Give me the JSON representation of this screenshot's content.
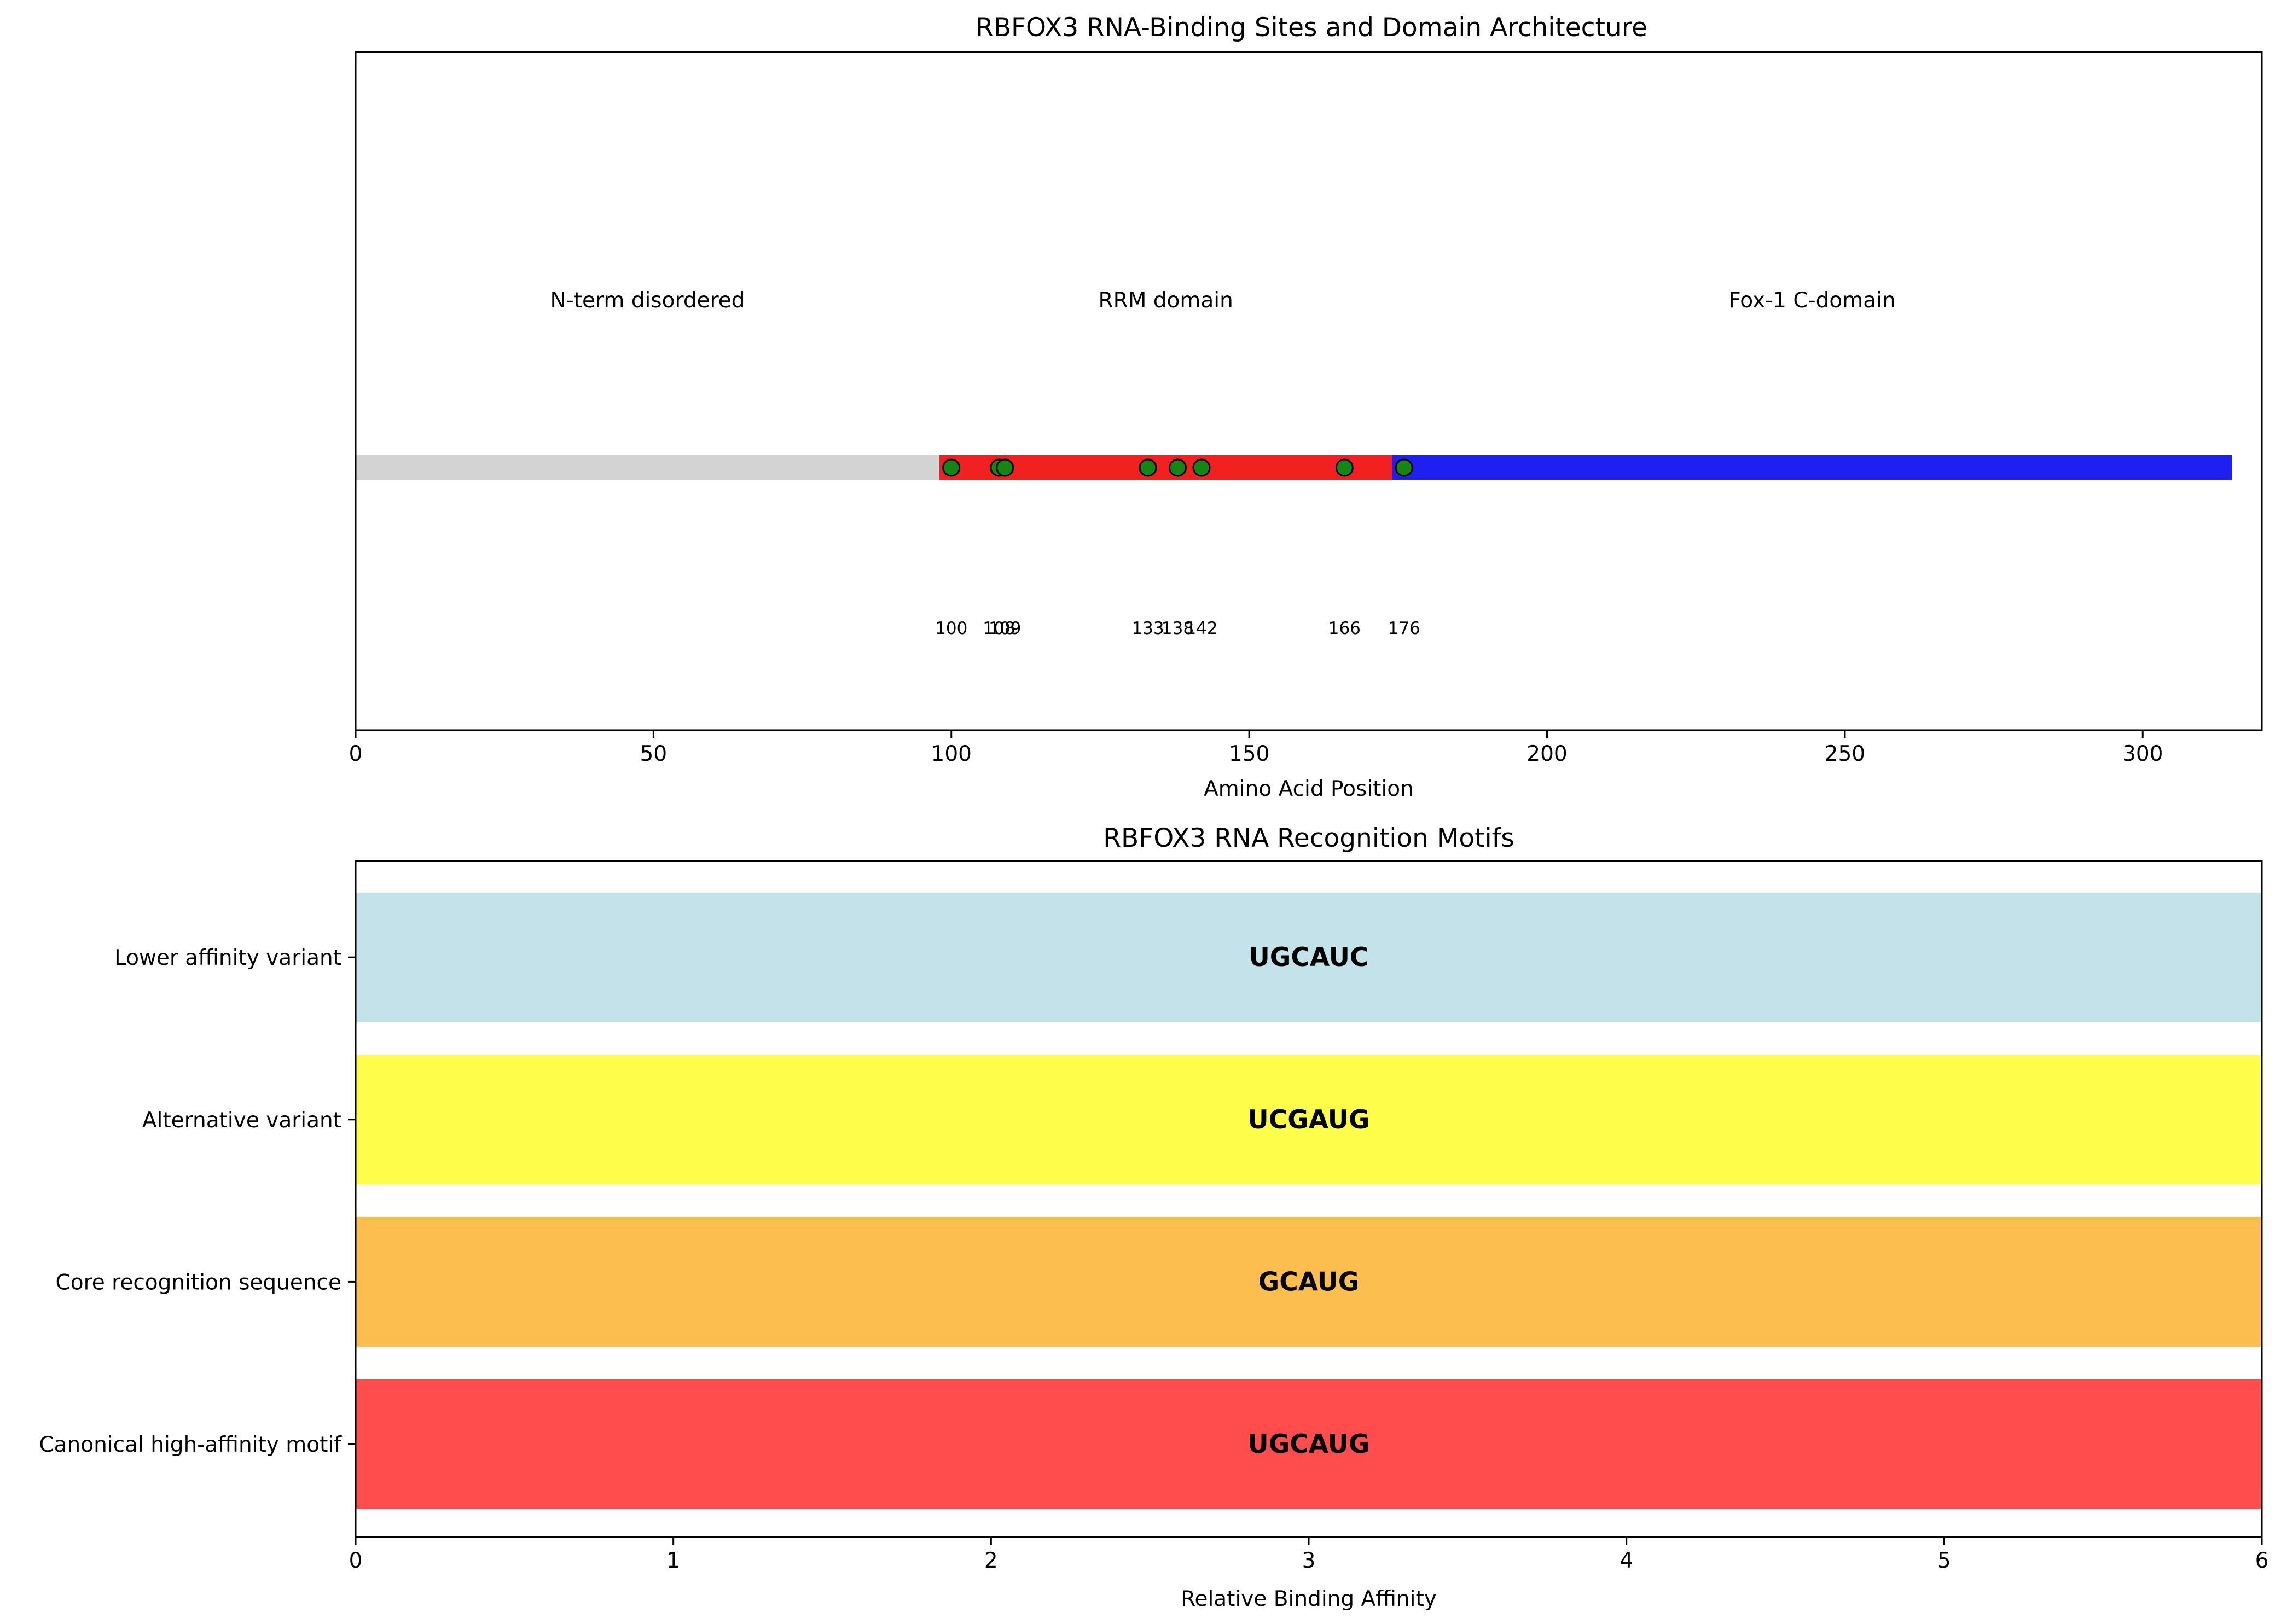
{
  "chart_data": [
    {
      "type": "scatter",
      "title": "RBFOX3 RNA-Binding Sites and Domain Architecture",
      "xlabel": "Amino Acid Position",
      "ylabel": "",
      "xlim": [
        0,
        320
      ],
      "xticks": [
        0,
        50,
        100,
        150,
        200,
        250,
        300
      ],
      "grid": false,
      "domains": [
        {
          "name": "N-term disordered",
          "start": 0,
          "end": 98,
          "color": "#d3d3d3"
        },
        {
          "name": "RRM domain",
          "start": 98,
          "end": 174,
          "color": "#f22020"
        },
        {
          "name": "Fox-1 C-domain",
          "start": 174,
          "end": 315,
          "color": "#1f1ff2"
        }
      ],
      "binding_sites": [
        {
          "position": 100,
          "label": "100"
        },
        {
          "position": 108,
          "label": "108"
        },
        {
          "position": 109,
          "label": "109"
        },
        {
          "position": 133,
          "label": "133"
        },
        {
          "position": 138,
          "label": "138"
        },
        {
          "position": 142,
          "label": "142"
        },
        {
          "position": 166,
          "label": "166"
        },
        {
          "position": 176,
          "label": "176"
        }
      ],
      "marker_color": "#138613"
    },
    {
      "type": "bar",
      "orientation": "horizontal",
      "title": "RBFOX3 RNA Recognition Motifs",
      "xlabel": "Relative Binding Affinity",
      "ylabel": "",
      "xlim": [
        0,
        6
      ],
      "xticks": [
        0,
        1,
        2,
        3,
        4,
        5,
        6
      ],
      "grid": false,
      "categories": [
        "Canonical high-affinity motif",
        "Core recognition sequence",
        "Alternative variant",
        "Lower affinity variant"
      ],
      "values": [
        6,
        6,
        6,
        6
      ],
      "bar_labels": [
        "UGCAUG",
        "GCAUG",
        "UCGAUG",
        "UGCAUC"
      ],
      "colors": [
        "#ff4d4d",
        "#fdbe50",
        "#fdfd4a",
        "#c4e2ea"
      ]
    }
  ]
}
